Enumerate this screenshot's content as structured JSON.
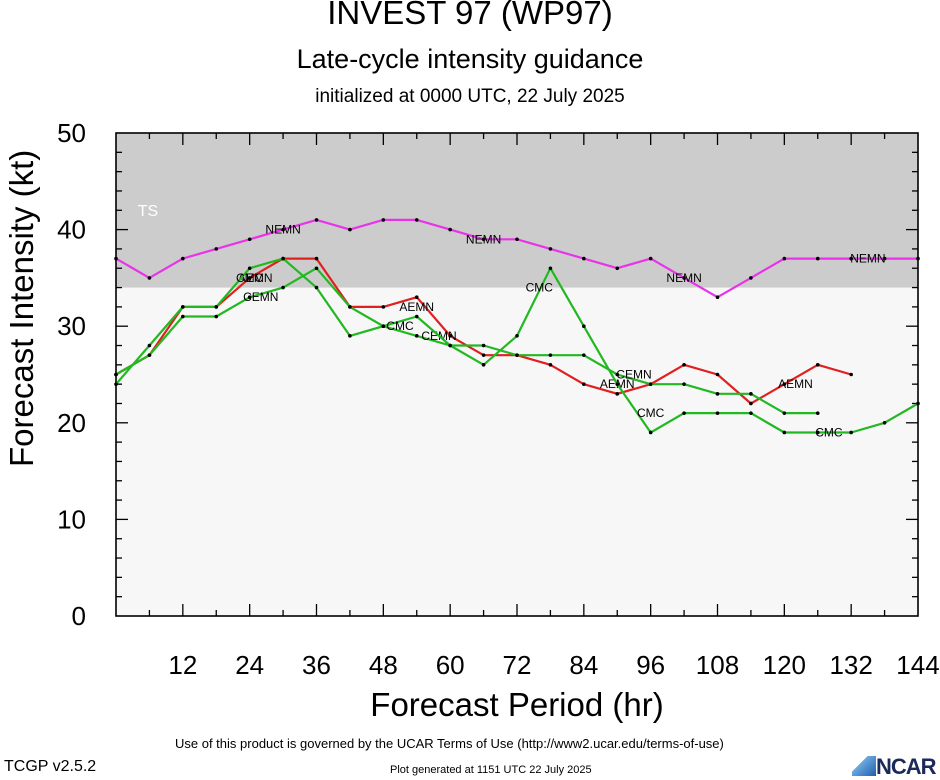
{
  "header": {
    "title": "INVEST 97 (WP97)",
    "subtitle": "Late-cycle intensity guidance",
    "initialized": "initialized at 0000 UTC, 22 July 2025"
  },
  "footer": {
    "terms": "Use of this product is governed by the UCAR Terms of Use (http://www2.ucar.edu/terms-of-use)",
    "version": "TCGP v2.5.2",
    "generated": "Plot generated at 1151 UTC   22 July 2025",
    "logo": "NCAR"
  },
  "chart_data": {
    "type": "line",
    "xlabel": "Forecast Period (hr)",
    "ylabel": "Forecast Intensity (kt)",
    "xlim": [
      0,
      144
    ],
    "ylim": [
      0,
      50
    ],
    "xticks": [
      12,
      24,
      36,
      48,
      60,
      72,
      84,
      96,
      108,
      120,
      132,
      144
    ],
    "yticks": [
      0,
      10,
      20,
      30,
      40,
      50
    ],
    "bands": [
      {
        "label": "",
        "from": 0,
        "to": 34,
        "color": "#f7f7f7"
      },
      {
        "label": "TS",
        "from": 34,
        "to": 50,
        "color": "#cccccc"
      }
    ],
    "series": [
      {
        "name": "NEMN",
        "color": "#e833e8",
        "x": [
          0,
          6,
          12,
          18,
          24,
          30,
          36,
          42,
          48,
          54,
          60,
          66,
          72,
          78,
          84,
          90,
          96,
          102,
          108,
          114,
          120,
          126,
          132,
          138,
          144
        ],
        "y": [
          37,
          35,
          37,
          38,
          39,
          40,
          41,
          40,
          41,
          41,
          40,
          39,
          39,
          38,
          37,
          36,
          37,
          35,
          33,
          35,
          37,
          37,
          37,
          37,
          37
        ],
        "labels": [
          {
            "x": 30,
            "y": 40
          },
          {
            "x": 66,
            "y": 39
          },
          {
            "x": 102,
            "y": 35
          },
          {
            "x": 135,
            "y": 37
          }
        ]
      },
      {
        "name": "AEMN",
        "color": "#e02020",
        "x": [
          0,
          6,
          12,
          18,
          24,
          30,
          36,
          42,
          48,
          54,
          60,
          66,
          72,
          78,
          84,
          90,
          96,
          102,
          108,
          114,
          120,
          126,
          132
        ],
        "y": [
          25,
          27,
          32,
          32,
          35,
          37,
          37,
          32,
          32,
          33,
          29,
          27,
          27,
          26,
          24,
          23,
          24,
          26,
          25,
          22,
          24,
          26,
          25
        ],
        "labels": [
          {
            "x": 25,
            "y": 35
          },
          {
            "x": 54,
            "y": 32
          },
          {
            "x": 90,
            "y": 24
          },
          {
            "x": 122,
            "y": 24
          }
        ]
      },
      {
        "name": "CEMN",
        "color": "#22b822",
        "x": [
          0,
          6,
          12,
          18,
          24,
          30,
          36,
          42,
          48,
          54,
          60,
          66,
          72,
          78,
          84,
          90,
          96,
          102,
          108,
          114,
          120,
          126
        ],
        "y": [
          25,
          27,
          31,
          31,
          33,
          34,
          36,
          32,
          30,
          29,
          28,
          28,
          27,
          27,
          27,
          25,
          24,
          24,
          23,
          23,
          21,
          21
        ],
        "labels": [
          {
            "x": 26,
            "y": 33
          },
          {
            "x": 58,
            "y": 29
          },
          {
            "x": 93,
            "y": 25
          }
        ]
      },
      {
        "name": "CMC",
        "color": "#22b822",
        "x": [
          0,
          6,
          12,
          18,
          24,
          30,
          36,
          42,
          48,
          54,
          60,
          66,
          72,
          78,
          84,
          90,
          96,
          102,
          108,
          114,
          120,
          126,
          132,
          138,
          144
        ],
        "y": [
          24,
          28,
          32,
          32,
          36,
          37,
          34,
          29,
          30,
          31,
          28,
          26,
          29,
          36,
          30,
          24,
          19,
          21,
          21,
          21,
          19,
          19,
          19,
          20,
          22
        ],
        "labels": [
          {
            "x": 24,
            "y": 35
          },
          {
            "x": 51,
            "y": 30
          },
          {
            "x": 76,
            "y": 34
          },
          {
            "x": 96,
            "y": 21
          },
          {
            "x": 128,
            "y": 19
          }
        ]
      }
    ]
  }
}
